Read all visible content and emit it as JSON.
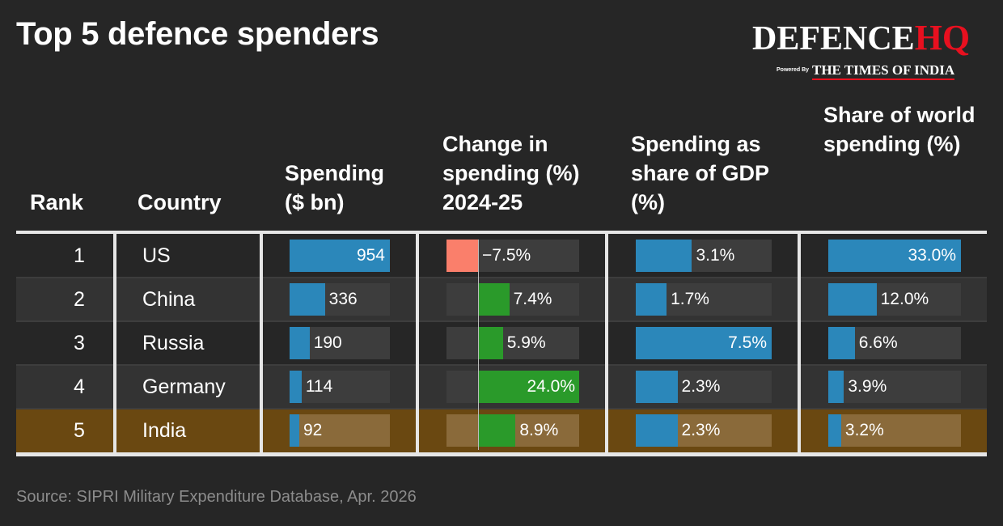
{
  "title": "Top 5 defence spenders",
  "logo": {
    "brand_part1": "DEFENCE",
    "brand_part2": "HQ",
    "powered_by": "Powered By",
    "partner": "THE TIMES OF INDIA",
    "accent_color": "#e8101f"
  },
  "source": "Source: SIPRI Military Expenditure Database, Apr. 2026",
  "colors": {
    "bar_blue": "#2b87ba",
    "bar_green": "#2a9a2a",
    "bar_negative": "#fa7f6b",
    "highlight_row": "#6a4811",
    "track": "#3d3d3d"
  },
  "chart_data": {
    "type": "table",
    "columns": [
      {
        "key": "rank",
        "header": "Rank"
      },
      {
        "key": "country",
        "header": "Country"
      },
      {
        "key": "spending",
        "header": "Spending ($ bn)",
        "max": 954
      },
      {
        "key": "change",
        "header": "Change in spending (%) 2024-25",
        "min": -7.5,
        "max": 24.0,
        "unit": "%"
      },
      {
        "key": "gdp_share",
        "header": "Spending as share of GDP (%)",
        "max": 7.5,
        "unit": "%"
      },
      {
        "key": "world_share",
        "header": "Share of world spending (%)",
        "max": 33.0,
        "unit": "%"
      }
    ],
    "rows": [
      {
        "rank": "1",
        "country": "US",
        "spending": 954,
        "change": -7.5,
        "gdp_share": 3.1,
        "world_share": 33.0,
        "highlight": false
      },
      {
        "rank": "2",
        "country": "China",
        "spending": 336,
        "change": 7.4,
        "gdp_share": 1.7,
        "world_share": 12.0,
        "highlight": false
      },
      {
        "rank": "3",
        "country": "Russia",
        "spending": 190,
        "change": 5.9,
        "gdp_share": 7.5,
        "world_share": 6.6,
        "highlight": false
      },
      {
        "rank": "4",
        "country": "Germany",
        "spending": 114,
        "change": 24.0,
        "gdp_share": 2.3,
        "world_share": 3.9,
        "highlight": false
      },
      {
        "rank": "5",
        "country": "India",
        "spending": 92,
        "change": 8.9,
        "gdp_share": 2.3,
        "world_share": 3.2,
        "highlight": true
      }
    ]
  }
}
